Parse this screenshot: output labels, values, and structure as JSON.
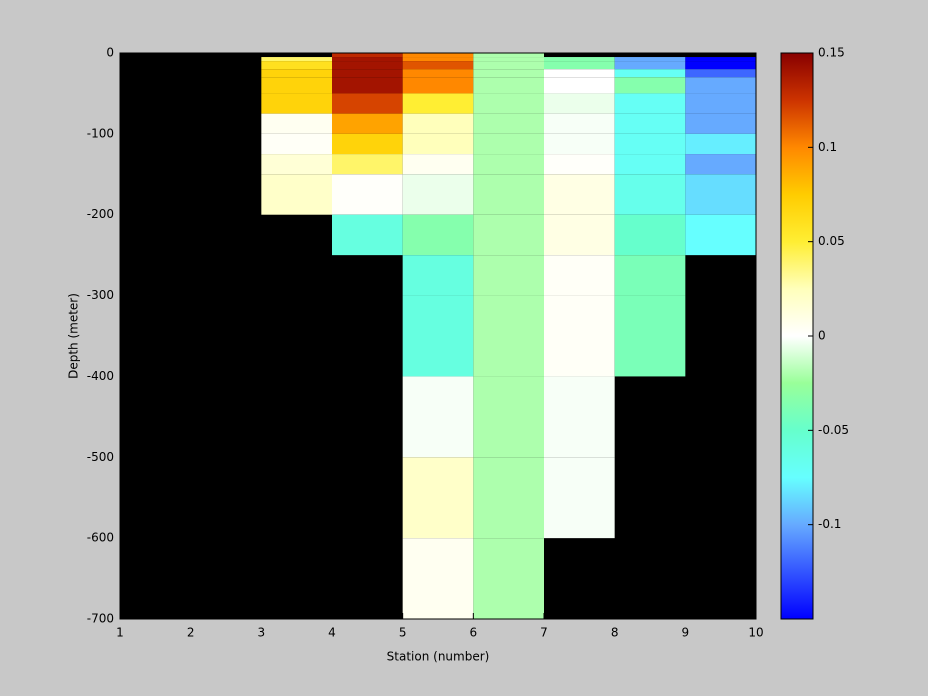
{
  "chart_data": {
    "type": "heatmap",
    "xlabel": "Station (number)",
    "ylabel": "Depth (meter)",
    "x_edges": [
      1,
      2,
      3,
      4,
      5,
      6,
      7,
      8,
      9,
      10
    ],
    "y_edges": [
      0,
      -5,
      -10,
      -20,
      -30,
      -50,
      -75,
      -100,
      -125,
      -150,
      -200,
      -250,
      -300,
      -400,
      -500,
      -600,
      -700
    ],
    "values": [
      [
        null,
        null,
        null,
        0.13,
        0.1,
        -0.02,
        null,
        null,
        null
      ],
      [
        null,
        null,
        0.04,
        0.14,
        0.1,
        -0.02,
        -0.035,
        -0.1,
        -0.15
      ],
      [
        null,
        null,
        0.06,
        0.14,
        0.115,
        -0.02,
        -0.035,
        -0.1,
        -0.15
      ],
      [
        null,
        null,
        0.07,
        0.14,
        0.1,
        -0.02,
        0.0,
        -0.07,
        -0.12
      ],
      [
        null,
        null,
        0.07,
        0.14,
        0.1,
        -0.02,
        0.0,
        -0.035,
        -0.1
      ],
      [
        null,
        null,
        0.07,
        0.12,
        0.05,
        -0.02,
        -0.005,
        -0.07,
        -0.1
      ],
      [
        null,
        null,
        0.005,
        0.09,
        0.025,
        -0.02,
        -0.002,
        -0.07,
        -0.1
      ],
      [
        null,
        null,
        0.003,
        0.07,
        0.025,
        -0.02,
        -0.002,
        -0.07,
        -0.08
      ],
      [
        null,
        null,
        0.015,
        0.04,
        0.005,
        -0.02,
        0.002,
        -0.07,
        -0.1
      ],
      [
        null,
        null,
        0.02,
        0.002,
        -0.005,
        -0.02,
        0.01,
        -0.065,
        -0.085
      ],
      [
        null,
        null,
        null,
        -0.06,
        -0.035,
        -0.02,
        0.01,
        -0.05,
        -0.075
      ],
      [
        null,
        null,
        null,
        null,
        -0.06,
        -0.02,
        0.003,
        -0.04,
        null
      ],
      [
        null,
        null,
        null,
        null,
        -0.06,
        -0.02,
        0.003,
        -0.04,
        null
      ],
      [
        null,
        null,
        null,
        null,
        -0.002,
        -0.02,
        -0.002,
        null,
        null
      ],
      [
        null,
        null,
        null,
        null,
        0.02,
        -0.02,
        -0.002,
        null,
        null
      ],
      [
        null,
        null,
        null,
        null,
        0.005,
        -0.02,
        null,
        null,
        null
      ]
    ],
    "xlim": [
      1,
      10
    ],
    "xticks": [
      1,
      2,
      3,
      4,
      5,
      6,
      7,
      8,
      9,
      10
    ],
    "ylim": [
      -700,
      0
    ],
    "yticks": [
      0,
      -100,
      -200,
      -300,
      -400,
      -500,
      -600,
      -700
    ],
    "clim": [
      -0.15,
      0.15
    ],
    "cticks": [
      0.15,
      0.1,
      0.05,
      0,
      -0.05,
      -0.1
    ],
    "colorscale": [
      "#0000ff",
      "#3355ff",
      "#66aaff",
      "#66ffff",
      "#66ffcc",
      "#99ff99",
      "#ffffff",
      "#ffffbb",
      "#ffee33",
      "#ffcc00",
      "#ff8800",
      "#cc3300",
      "#880000"
    ],
    "missing_color": "#000000"
  }
}
